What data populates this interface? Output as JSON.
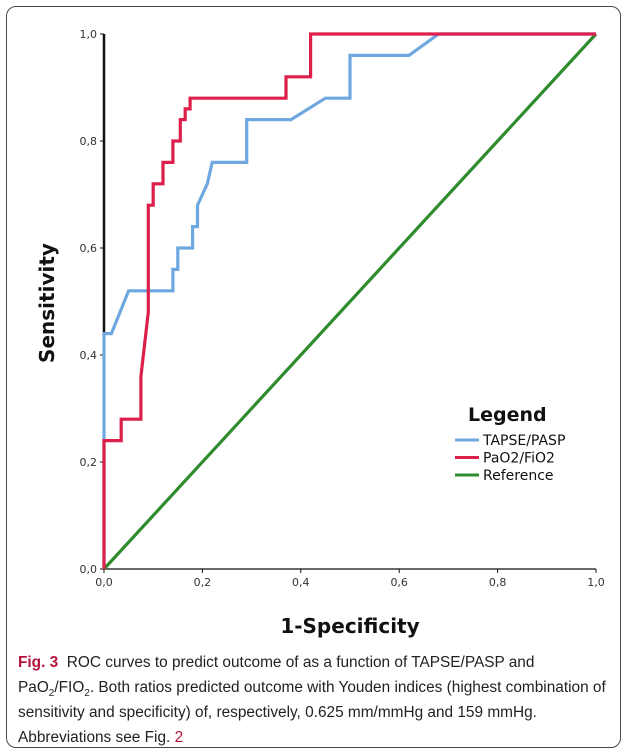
{
  "chart_data": {
    "type": "line",
    "title": "",
    "xlabel": "1-Specificity",
    "ylabel": "Sensitivity",
    "xlim": [
      0,
      1
    ],
    "ylim": [
      0,
      1
    ],
    "x_ticks": [
      "0,0",
      "0,2",
      "0,4",
      "0,6",
      "0,8",
      "1,0"
    ],
    "y_ticks": [
      "0,0",
      "0,2",
      "0,4",
      "0,6",
      "0,8",
      "1,0"
    ],
    "grid": false,
    "legend": {
      "title": "Legend",
      "placement": "bottom-right"
    },
    "series": [
      {
        "name": "TAPSE/PASP",
        "color": "#6fa8e0",
        "points": [
          [
            0,
            0
          ],
          [
            0,
            0.24
          ],
          [
            0,
            0.44
          ],
          [
            0.015,
            0.44
          ],
          [
            0.05,
            0.52
          ],
          [
            0.14,
            0.52
          ],
          [
            0.14,
            0.56
          ],
          [
            0.15,
            0.56
          ],
          [
            0.15,
            0.6
          ],
          [
            0.18,
            0.6
          ],
          [
            0.18,
            0.64
          ],
          [
            0.19,
            0.64
          ],
          [
            0.19,
            0.68
          ],
          [
            0.21,
            0.72
          ],
          [
            0.22,
            0.76
          ],
          [
            0.29,
            0.76
          ],
          [
            0.29,
            0.84
          ],
          [
            0.38,
            0.84
          ],
          [
            0.45,
            0.88
          ],
          [
            0.5,
            0.88
          ],
          [
            0.5,
            0.96
          ],
          [
            0.62,
            0.96
          ],
          [
            0.68,
            1.0
          ],
          [
            1.0,
            1.0
          ]
        ]
      },
      {
        "name": "PaO2/FiO2",
        "color": "#dd1f4b",
        "points": [
          [
            0,
            0
          ],
          [
            0,
            0.24
          ],
          [
            0.035,
            0.24
          ],
          [
            0.035,
            0.28
          ],
          [
            0.075,
            0.28
          ],
          [
            0.075,
            0.36
          ],
          [
            0.09,
            0.48
          ],
          [
            0.09,
            0.68
          ],
          [
            0.1,
            0.68
          ],
          [
            0.1,
            0.72
          ],
          [
            0.12,
            0.72
          ],
          [
            0.12,
            0.76
          ],
          [
            0.14,
            0.76
          ],
          [
            0.14,
            0.8
          ],
          [
            0.155,
            0.8
          ],
          [
            0.155,
            0.84
          ],
          [
            0.165,
            0.84
          ],
          [
            0.165,
            0.86
          ],
          [
            0.175,
            0.86
          ],
          [
            0.175,
            0.88
          ],
          [
            0.37,
            0.88
          ],
          [
            0.37,
            0.92
          ],
          [
            0.42,
            0.92
          ],
          [
            0.42,
            1.0
          ],
          [
            1.0,
            1.0
          ]
        ]
      },
      {
        "name": "Reference",
        "color": "#2e8b2e",
        "points": [
          [
            0,
            0
          ],
          [
            1,
            1
          ]
        ]
      }
    ]
  },
  "caption": {
    "fig_label": "Fig. 3",
    "text_1": "ROC curves to predict outcome of as a function of TAPSE/PASP and PaO",
    "sub_1": "2",
    "text_2": "/FIO",
    "sub_2": "2",
    "text_3": ". Both ratios predicted outcome with Youden indices (highest combination of sensitivity and specificity) of, respectively, 0.625 mm/mmHg and 159 mmHg. Abbreviations see Fig. ",
    "fig_ref": "2"
  }
}
